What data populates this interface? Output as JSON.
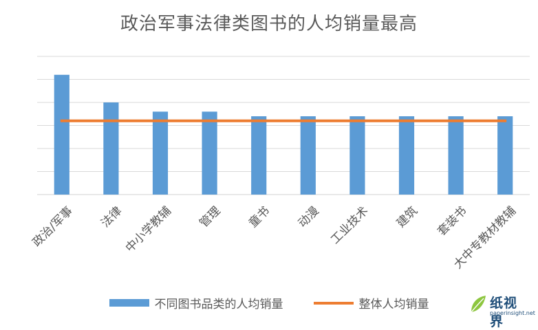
{
  "chart_data": {
    "type": "bar",
    "title": "政治军事法律类图书的人均销量最高",
    "categories": [
      "政治/军事",
      "法律",
      "中小学教辅",
      "管理",
      "童书",
      "动漫",
      "工业技术",
      "建筑",
      "套装书",
      "大中专教材教辅"
    ],
    "series": [
      {
        "name": "不同图书品类的人均销量",
        "type": "bar",
        "values": [
          5.2,
          4.0,
          3.6,
          3.6,
          3.4,
          3.4,
          3.4,
          3.4,
          3.4,
          3.4
        ]
      },
      {
        "name": "整体人均销量",
        "type": "line",
        "values": [
          3.2,
          3.2,
          3.2,
          3.2,
          3.2,
          3.2,
          3.2,
          3.2,
          3.2,
          3.2
        ]
      }
    ],
    "ylim": [
      0,
      6
    ],
    "y_tick_count": 7,
    "y_tick_labels_visible": false,
    "grid": true,
    "legend_position": "bottom",
    "colors": {
      "bar": "#5b9bd5",
      "line": "#ed7d31",
      "grid": "#d9d9d9",
      "text": "#595959"
    }
  },
  "watermark": {
    "name": "纸视界",
    "url": "paperinsight.net"
  }
}
